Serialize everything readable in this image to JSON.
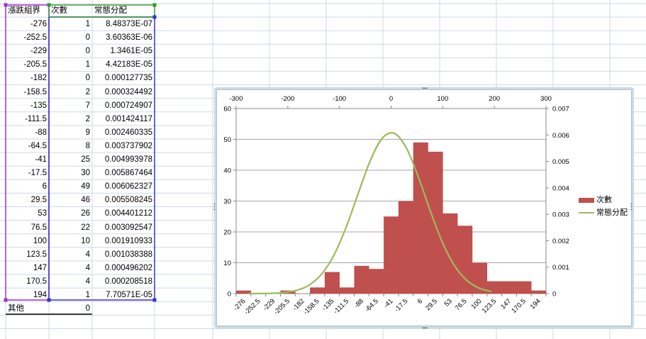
{
  "sheet": {
    "headers": [
      "漲跌組界",
      "次數",
      "常態分配"
    ],
    "rows": [
      {
        "bin": "-276",
        "count": "1",
        "normal": "8.48373E-07"
      },
      {
        "bin": "-252.5",
        "count": "0",
        "normal": "3.60363E-06"
      },
      {
        "bin": "-229",
        "count": "0",
        "normal": "1.3461E-05"
      },
      {
        "bin": "-205.5",
        "count": "1",
        "normal": "4.42183E-05"
      },
      {
        "bin": "-182",
        "count": "0",
        "normal": "0.000127735"
      },
      {
        "bin": "-158.5",
        "count": "2",
        "normal": "0.000324492"
      },
      {
        "bin": "-135",
        "count": "7",
        "normal": "0.000724907"
      },
      {
        "bin": "-111.5",
        "count": "2",
        "normal": "0.001424117"
      },
      {
        "bin": "-88",
        "count": "9",
        "normal": "0.002460335"
      },
      {
        "bin": "-64.5",
        "count": "8",
        "normal": "0.003737902"
      },
      {
        "bin": "-41",
        "count": "25",
        "normal": "0.004993978"
      },
      {
        "bin": "-17.5",
        "count": "30",
        "normal": "0.005867464"
      },
      {
        "bin": "6",
        "count": "49",
        "normal": "0.006062327"
      },
      {
        "bin": "29.5",
        "count": "46",
        "normal": "0.005508245"
      },
      {
        "bin": "53",
        "count": "26",
        "normal": "0.004401212"
      },
      {
        "bin": "76.5",
        "count": "22",
        "normal": "0.003092547"
      },
      {
        "bin": "100",
        "count": "10",
        "normal": "0.001910933"
      },
      {
        "bin": "123.5",
        "count": "4",
        "normal": "0.001038388"
      },
      {
        "bin": "147",
        "count": "4",
        "normal": "0.000496202"
      },
      {
        "bin": "170.5",
        "count": "4",
        "normal": "0.000208518"
      },
      {
        "bin": "194",
        "count": "1",
        "normal": "7.70571E-05"
      }
    ],
    "other_label": "其他",
    "other_count": "0",
    "colors": {
      "gridline": "#d0d7e5",
      "range_purple": "#9933cc",
      "range_blue": "#3333cc",
      "range_green": "#339933"
    }
  },
  "chart_data": {
    "type": "bar",
    "categories": [
      "-276",
      "-252.5",
      "-229",
      "-205.5",
      "-182",
      "-158.5",
      "-135",
      "-111.5",
      "-88",
      "-64.5",
      "-41",
      "-17.5",
      "6",
      "29.5",
      "53",
      "76.5",
      "100",
      "123.5",
      "147",
      "170.5",
      "194"
    ],
    "series": [
      {
        "name": "次數",
        "type": "bar",
        "axis": "primary",
        "color": "#c0504d",
        "values": [
          1,
          0,
          0,
          1,
          0,
          2,
          7,
          2,
          9,
          8,
          25,
          30,
          49,
          46,
          26,
          22,
          10,
          4,
          4,
          4,
          1
        ]
      },
      {
        "name": "常態分配",
        "type": "line",
        "axis": "secondary",
        "color": "#9bbb59",
        "x": [
          -276,
          -252.5,
          -229,
          -205.5,
          -182,
          -158.5,
          -135,
          -111.5,
          -88,
          -64.5,
          -41,
          -17.5,
          6,
          29.5,
          53,
          76.5,
          100,
          123.5,
          147,
          170.5,
          194
        ],
        "values": [
          8.48373e-07,
          3.60363e-06,
          1.3461e-05,
          4.42183e-05,
          0.000127735,
          0.000324492,
          0.000724907,
          0.001424117,
          0.002460335,
          0.003737902,
          0.004993978,
          0.005867464,
          0.006062327,
          0.005508245,
          0.004401212,
          0.003092547,
          0.001910933,
          0.001038388,
          0.000496202,
          0.000208518,
          7.70571e-05
        ]
      }
    ],
    "y_primary": {
      "ticks": [
        "0",
        "10",
        "20",
        "30",
        "40",
        "50",
        "60"
      ],
      "range": [
        0,
        60
      ]
    },
    "y_secondary": {
      "ticks": [
        "0",
        "0.001",
        "0.002",
        "0.003",
        "0.004",
        "0.005",
        "0.006",
        "0.007"
      ],
      "range": [
        0,
        0.007
      ]
    },
    "x_secondary": {
      "ticks": [
        "-300",
        "-200",
        "-100",
        "0",
        "100",
        "200",
        "300"
      ],
      "range": [
        -300,
        300
      ]
    },
    "legend": {
      "position": "right",
      "items": [
        "次數",
        "常態分配"
      ]
    },
    "grid": true
  }
}
